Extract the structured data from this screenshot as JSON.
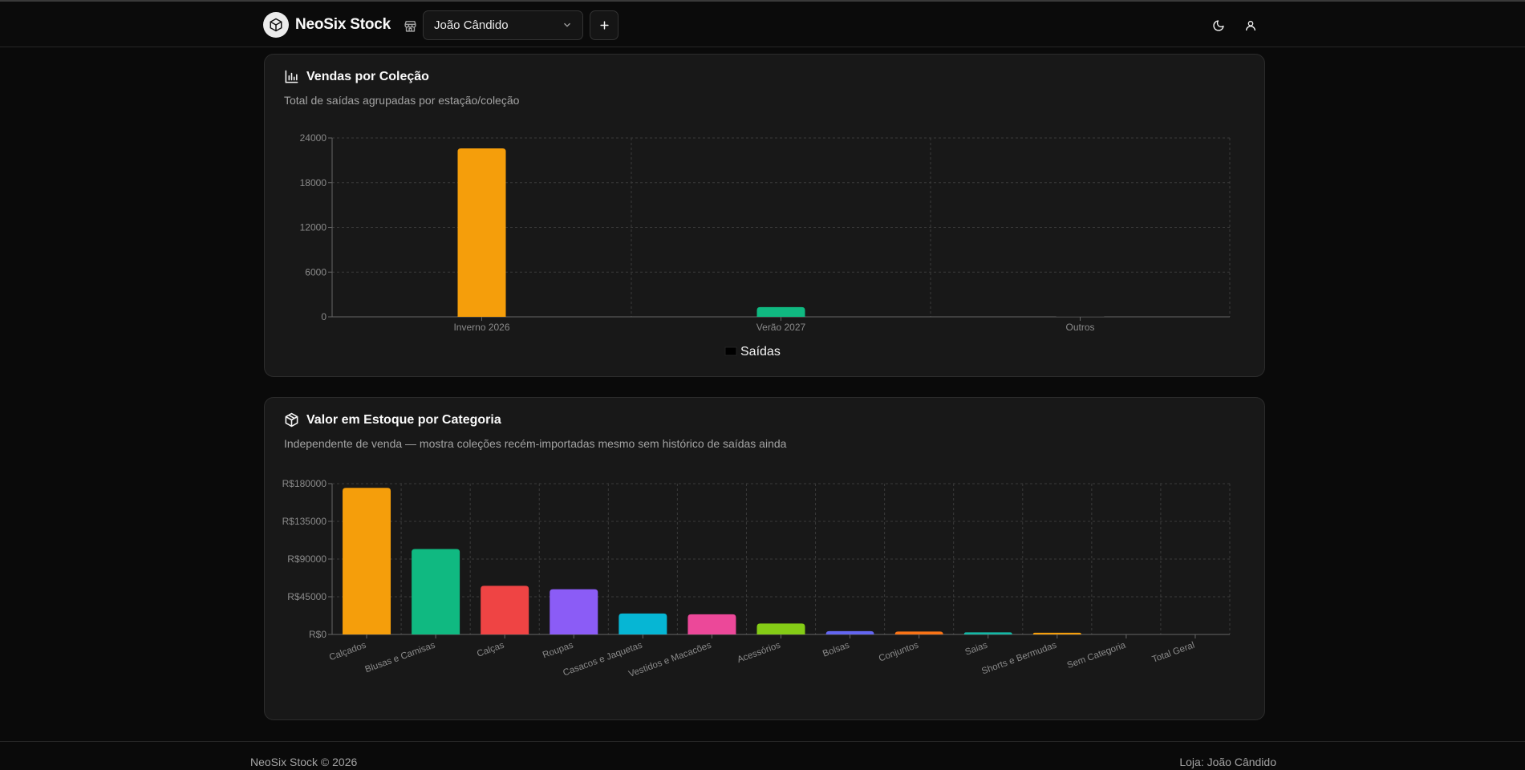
{
  "header": {
    "brand": "NeoSix Stock",
    "store_select_value": "João Cândido",
    "add_button_label": "+",
    "icons": {
      "logo": "box-icon",
      "store": "store-icon",
      "dropdown": "chevron-down-icon",
      "theme": "moon-icon",
      "user": "user-icon"
    }
  },
  "card1": {
    "title": "Vendas por Coleção",
    "subtitle": "Total de saídas agrupadas por estação/coleção",
    "icon": "bar-chart-icon"
  },
  "card2": {
    "title": "Valor em Estoque por Categoria",
    "subtitle": "Independente de venda — mostra coleções recém-importadas mesmo sem histórico de saídas ainda",
    "icon": "package-icon"
  },
  "chart_data": [
    {
      "type": "bar",
      "categories": [
        "Inverno 2026",
        "Verão 2027",
        "Outros"
      ],
      "series": [
        {
          "name": "Saídas",
          "values": [
            22600,
            1300,
            50
          ]
        }
      ],
      "bar_colors": [
        "#f59e0b",
        "#10b981",
        "#3b3b3b"
      ],
      "legend_color": "#000000",
      "ylim": [
        0,
        24000
      ],
      "yticks": [
        0,
        6000,
        12000,
        18000,
        24000
      ],
      "ytick_labels": [
        "0",
        "6000",
        "12000",
        "18000",
        "24000"
      ],
      "grid": true,
      "legend_position": "bottom"
    },
    {
      "type": "bar",
      "categories": [
        "Calçados",
        "Blusas e Camisas",
        "Calças",
        "Roupas",
        "Casacos e Jaquetas",
        "Vestidos e Macacões",
        "Acessórios",
        "Bolsas",
        "Conjuntos",
        "Saias",
        "Shorts e Bermudas",
        "Sem Categoria",
        "Total Geral"
      ],
      "values": [
        175000,
        102000,
        58000,
        54000,
        25000,
        24000,
        13000,
        4000,
        3500,
        2500,
        2000,
        0,
        0
      ],
      "bar_colors": [
        "#f59e0b",
        "#10b981",
        "#ef4444",
        "#8b5cf6",
        "#06b6d4",
        "#ec4899",
        "#84cc16",
        "#6366f1",
        "#f97316",
        "#14b8a6",
        "#f59e0b",
        "#10b981",
        "#ef4444"
      ],
      "ylim": [
        0,
        180000
      ],
      "yticks": [
        0,
        45000,
        90000,
        135000,
        180000
      ],
      "ytick_labels": [
        "R$0",
        "R$45000",
        "R$90000",
        "R$135000",
        "R$180000"
      ],
      "grid": true
    }
  ],
  "footer": {
    "left": "NeoSix Stock © 2026",
    "right": "Loja: João Cândido"
  }
}
